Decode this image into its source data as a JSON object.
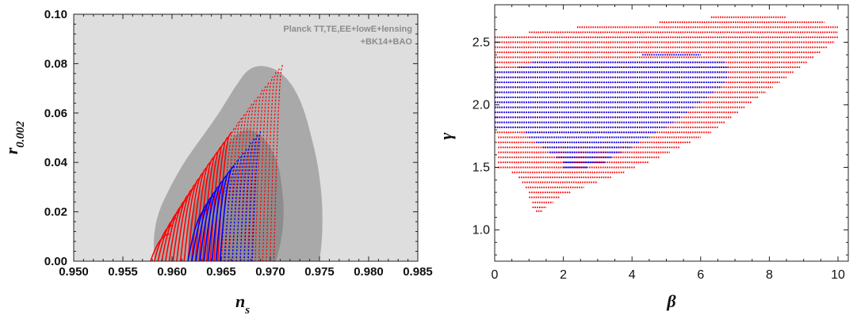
{
  "chart_data": [
    {
      "type": "scatter",
      "xlabel": "n",
      "xlabel_sub": "s",
      "ylabel": "r",
      "ylabel_sub": "0.002",
      "xlim": [
        0.95,
        0.985
      ],
      "ylim": [
        0.0,
        0.1
      ],
      "xticks": [
        "0.950",
        "0.955",
        "0.960",
        "0.965",
        "0.970",
        "0.975",
        "0.980",
        "0.985"
      ],
      "yticks": [
        "0.00",
        "0.02",
        "0.04",
        "0.06",
        "0.08",
        "0.10"
      ],
      "annotation": [
        "Planck TT,TE,EE+lowE+lensing",
        "+BK14+BAO"
      ],
      "contours": [
        {
          "level": "95% CL",
          "color": "#a9a9a9",
          "points": [
            [
              0.9582,
              0.0
            ],
            [
              0.9581,
              0.01
            ],
            [
              0.9586,
              0.02
            ],
            [
              0.9598,
              0.03
            ],
            [
              0.9612,
              0.04
            ],
            [
              0.963,
              0.05
            ],
            [
              0.9648,
              0.06
            ],
            [
              0.9663,
              0.07
            ],
            [
              0.968,
              0.0795
            ],
            [
              0.9705,
              0.0785
            ],
            [
              0.9722,
              0.072
            ],
            [
              0.9734,
              0.062
            ],
            [
              0.9742,
              0.05
            ],
            [
              0.9748,
              0.04
            ],
            [
              0.9753,
              0.025
            ],
            [
              0.9753,
              0.01
            ],
            [
              0.975,
              0.0
            ]
          ]
        },
        {
          "level": "68% CL",
          "color": "#8d8d8d",
          "points": [
            [
              0.9618,
              0.0
            ],
            [
              0.9616,
              0.01
            ],
            [
              0.962,
              0.02
            ],
            [
              0.963,
              0.03
            ],
            [
              0.9642,
              0.04
            ],
            [
              0.9656,
              0.048
            ],
            [
              0.9675,
              0.0545
            ],
            [
              0.9695,
              0.05
            ],
            [
              0.9708,
              0.04
            ],
            [
              0.9712,
              0.03
            ],
            [
              0.9714,
              0.02
            ],
            [
              0.9712,
              0.01
            ],
            [
              0.9706,
              0.0
            ]
          ]
        }
      ],
      "series": [
        {
          "color": "#ff0000",
          "ns_range": [
            0.9581,
            0.9705
          ],
          "r_max_range": [
            0.011,
            0.08
          ],
          "count": 34
        },
        {
          "color": "#0000ff",
          "ns_range": [
            0.9619,
            0.9683
          ],
          "r_max_range": [
            0.021,
            0.053
          ],
          "count": 17
        }
      ]
    },
    {
      "type": "scatter",
      "xlabel": "β",
      "ylabel": "γ",
      "xlim": [
        0,
        10.3
      ],
      "ylim": [
        0.75,
        2.8
      ],
      "xticks": [
        "0",
        "2",
        "4",
        "6",
        "8",
        "10"
      ],
      "yticks": [
        "1.0",
        "1.5",
        "2.0",
        "2.5"
      ],
      "series": [
        {
          "color": "#ff0000",
          "rows": [
            {
              "gamma": 2.7,
              "beta": [
                6.3,
                8.5
              ]
            },
            {
              "gamma": 2.66,
              "beta": [
                4.8,
                9.6
              ]
            },
            {
              "gamma": 2.62,
              "beta": [
                2.4,
                10.0
              ]
            },
            {
              "gamma": 2.58,
              "beta": [
                1.0,
                10.0
              ]
            },
            {
              "gamma": 2.54,
              "beta": [
                0.0,
                10.0
              ]
            },
            {
              "gamma": 2.5,
              "beta": [
                0.0,
                9.9
              ]
            },
            {
              "gamma": 2.46,
              "beta": [
                0.0,
                9.7
              ]
            },
            {
              "gamma": 2.42,
              "beta": [
                0.0,
                9.5
              ]
            },
            {
              "gamma": 2.38,
              "beta": [
                0.0,
                9.3
              ]
            },
            {
              "gamma": 2.34,
              "beta": [
                0.0,
                9.1
              ]
            },
            {
              "gamma": 2.3,
              "beta": [
                0.0,
                8.9
              ]
            },
            {
              "gamma": 2.26,
              "beta": [
                0.0,
                8.7
              ]
            },
            {
              "gamma": 2.22,
              "beta": [
                0.0,
                8.5
              ]
            },
            {
              "gamma": 2.18,
              "beta": [
                0.0,
                8.3
              ]
            },
            {
              "gamma": 2.14,
              "beta": [
                0.0,
                8.1
              ]
            },
            {
              "gamma": 2.1,
              "beta": [
                0.0,
                7.9
              ]
            },
            {
              "gamma": 2.06,
              "beta": [
                0.0,
                7.7
              ]
            },
            {
              "gamma": 2.02,
              "beta": [
                0.0,
                7.5
              ]
            },
            {
              "gamma": 1.98,
              "beta": [
                0.0,
                7.3
              ]
            },
            {
              "gamma": 1.94,
              "beta": [
                0.0,
                7.1
              ]
            },
            {
              "gamma": 1.9,
              "beta": [
                0.0,
                6.9
              ]
            },
            {
              "gamma": 1.86,
              "beta": [
                0.0,
                6.7
              ]
            },
            {
              "gamma": 1.82,
              "beta": [
                0.0,
                6.5
              ]
            },
            {
              "gamma": 1.78,
              "beta": [
                0.0,
                6.3
              ]
            },
            {
              "gamma": 1.74,
              "beta": [
                0.1,
                6.0
              ]
            },
            {
              "gamma": 1.7,
              "beta": [
                0.1,
                5.7
              ]
            },
            {
              "gamma": 1.66,
              "beta": [
                0.1,
                5.4
              ]
            },
            {
              "gamma": 1.62,
              "beta": [
                0.1,
                5.1
              ]
            },
            {
              "gamma": 1.58,
              "beta": [
                0.1,
                4.8
              ]
            },
            {
              "gamma": 1.54,
              "beta": [
                0.1,
                4.5
              ]
            },
            {
              "gamma": 1.5,
              "beta": [
                0.1,
                4.1
              ]
            },
            {
              "gamma": 1.46,
              "beta": [
                0.5,
                3.8
              ]
            },
            {
              "gamma": 1.42,
              "beta": [
                0.7,
                3.4
              ]
            },
            {
              "gamma": 1.38,
              "beta": [
                0.8,
                3.0
              ]
            },
            {
              "gamma": 1.34,
              "beta": [
                0.9,
                2.6
              ]
            },
            {
              "gamma": 1.3,
              "beta": [
                1.0,
                2.2
              ]
            },
            {
              "gamma": 1.26,
              "beta": [
                1.0,
                1.9
              ]
            },
            {
              "gamma": 1.22,
              "beta": [
                1.1,
                1.7
              ]
            },
            {
              "gamma": 1.18,
              "beta": [
                1.1,
                1.5
              ]
            },
            {
              "gamma": 1.15,
              "beta": [
                1.2,
                1.4
              ]
            }
          ]
        },
        {
          "color": "#0000ff",
          "rows": [
            {
              "gamma": 2.4,
              "beta": [
                4.3,
                6.0
              ]
            },
            {
              "gamma": 2.34,
              "beta": [
                1.1,
                6.7
              ]
            },
            {
              "gamma": 2.3,
              "beta": [
                0.7,
                6.8
              ]
            },
            {
              "gamma": 2.26,
              "beta": [
                0.0,
                6.8
              ]
            },
            {
              "gamma": 2.22,
              "beta": [
                0.0,
                6.8
              ]
            },
            {
              "gamma": 2.18,
              "beta": [
                0.0,
                6.7
              ]
            },
            {
              "gamma": 2.14,
              "beta": [
                0.0,
                6.6
              ]
            },
            {
              "gamma": 2.1,
              "beta": [
                0.0,
                6.4
              ]
            },
            {
              "gamma": 2.06,
              "beta": [
                0.0,
                6.2
              ]
            },
            {
              "gamma": 2.02,
              "beta": [
                0.0,
                6.0
              ]
            },
            {
              "gamma": 1.98,
              "beta": [
                0.0,
                5.8
              ]
            },
            {
              "gamma": 1.94,
              "beta": [
                0.0,
                5.6
              ]
            },
            {
              "gamma": 1.9,
              "beta": [
                0.0,
                5.4
              ]
            },
            {
              "gamma": 1.86,
              "beta": [
                0.0,
                5.2
              ]
            },
            {
              "gamma": 1.82,
              "beta": [
                0.0,
                5.0
              ]
            },
            {
              "gamma": 1.78,
              "beta": [
                0.9,
                4.7
              ]
            },
            {
              "gamma": 1.74,
              "beta": [
                1.0,
                4.5
              ]
            },
            {
              "gamma": 1.7,
              "beta": [
                1.2,
                4.2
              ]
            },
            {
              "gamma": 1.66,
              "beta": [
                1.4,
                4.0
              ]
            },
            {
              "gamma": 1.62,
              "beta": [
                1.6,
                3.7
              ]
            },
            {
              "gamma": 1.58,
              "beta": [
                1.8,
                3.4
              ]
            },
            {
              "gamma": 1.54,
              "beta": [
                2.0,
                3.2
              ]
            },
            {
              "gamma": 1.5,
              "beta": [
                2.0,
                2.7
              ]
            }
          ]
        }
      ]
    }
  ]
}
